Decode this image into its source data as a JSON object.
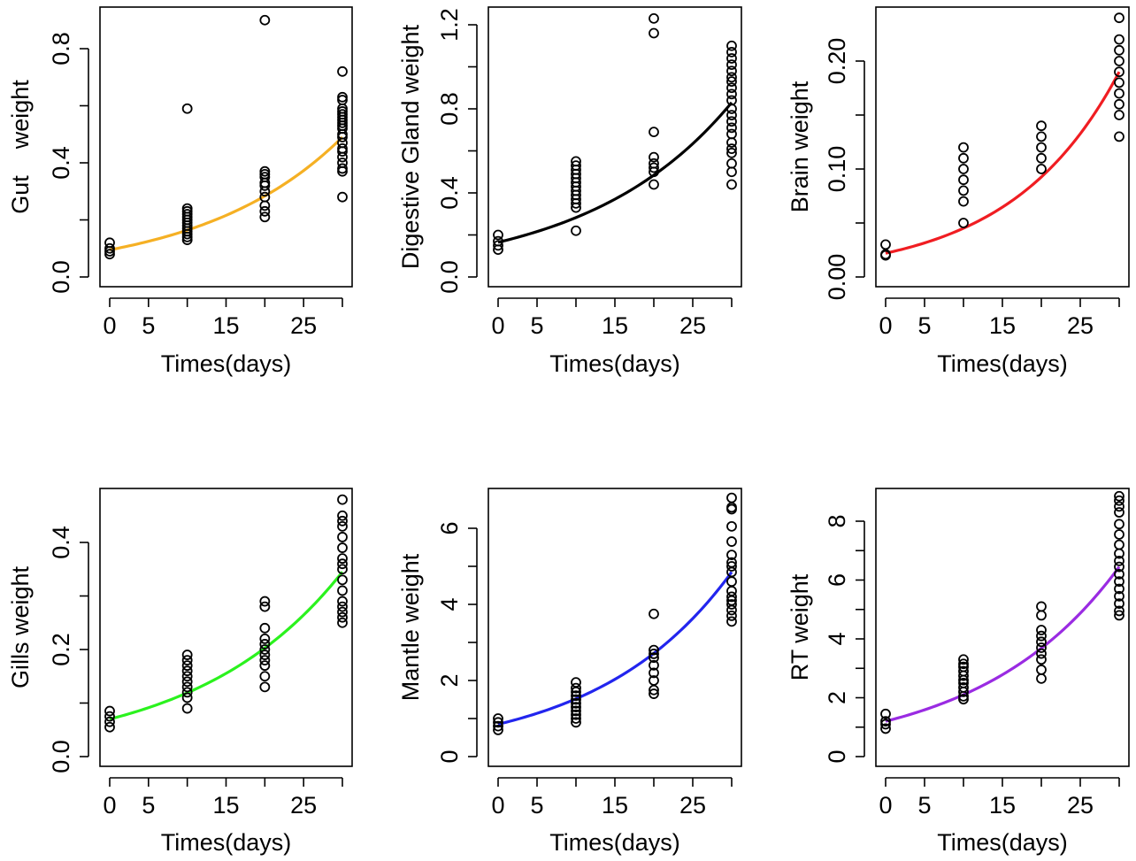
{
  "chart_data": [
    {
      "type": "scatter",
      "xlabel": "Times(days)",
      "ylabel": "Gut    weight",
      "xlim": [
        0,
        30
      ],
      "ylim": [
        0.0,
        0.9
      ],
      "xticks": [
        0,
        5,
        15,
        25
      ],
      "xtick_labels": [
        "0",
        "5",
        "15",
        "25"
      ],
      "yticks": [
        0.0,
        0.4,
        0.8
      ],
      "ytick_labels": [
        "0.0",
        "0.4",
        "0.8"
      ],
      "fit_color": "#F5B024",
      "fit": {
        "x": [
          0,
          30
        ],
        "y_start": 0.095,
        "y_end": 0.49
      },
      "points": [
        {
          "x": 0,
          "y": [
            0.08,
            0.09,
            0.1,
            0.12
          ]
        },
        {
          "x": 10,
          "y": [
            0.13,
            0.14,
            0.15,
            0.16,
            0.17,
            0.18,
            0.19,
            0.2,
            0.21,
            0.22,
            0.23,
            0.24,
            0.59
          ]
        },
        {
          "x": 20,
          "y": [
            0.21,
            0.23,
            0.25,
            0.28,
            0.3,
            0.32,
            0.33,
            0.35,
            0.36,
            0.37,
            0.9
          ]
        },
        {
          "x": 30,
          "y": [
            0.28,
            0.37,
            0.38,
            0.4,
            0.42,
            0.44,
            0.45,
            0.47,
            0.49,
            0.5,
            0.52,
            0.53,
            0.54,
            0.55,
            0.56,
            0.57,
            0.58,
            0.59,
            0.62,
            0.63,
            0.72
          ]
        }
      ]
    },
    {
      "type": "scatter",
      "xlabel": "Times(days)",
      "ylabel": "Digestive Gland weight",
      "xlim": [
        0,
        30
      ],
      "ylim": [
        0.0,
        1.25
      ],
      "xticks": [
        0,
        5,
        15,
        25
      ],
      "xtick_labels": [
        "0",
        "5",
        "15",
        "25"
      ],
      "yticks": [
        0.0,
        0.4,
        0.8,
        1.2
      ],
      "ytick_labels": [
        "0.0",
        "0.4",
        "0.8",
        "1.2"
      ],
      "fit_color": "#000000",
      "fit": {
        "x": [
          0,
          30
        ],
        "y_start": 0.165,
        "y_end": 0.83
      },
      "points": [
        {
          "x": 0,
          "y": [
            0.13,
            0.15,
            0.17,
            0.2
          ]
        },
        {
          "x": 10,
          "y": [
            0.22,
            0.33,
            0.35,
            0.37,
            0.39,
            0.41,
            0.43,
            0.45,
            0.47,
            0.49,
            0.51,
            0.53,
            0.55
          ]
        },
        {
          "x": 20,
          "y": [
            0.44,
            0.5,
            0.52,
            0.54,
            0.57,
            0.69,
            1.16,
            1.23
          ]
        },
        {
          "x": 30,
          "y": [
            0.44,
            0.5,
            0.54,
            0.59,
            0.61,
            0.64,
            0.68,
            0.71,
            0.74,
            0.77,
            0.8,
            0.84,
            0.87,
            0.9,
            0.93,
            0.95,
            0.98,
            1.01,
            1.04,
            1.07,
            1.1
          ]
        }
      ]
    },
    {
      "type": "scatter",
      "xlabel": "Times(days)",
      "ylabel": "Brain weight",
      "xlim": [
        0,
        30
      ],
      "ylim": [
        0.0,
        0.25
      ],
      "xticks": [
        0,
        5,
        15,
        25
      ],
      "xtick_labels": [
        "0",
        "5",
        "15",
        "25"
      ],
      "yticks": [
        0.0,
        0.1,
        0.2
      ],
      "ytick_labels": [
        "0.00",
        "0.10",
        "0.20"
      ],
      "fit_color": "#F01D22",
      "fit": {
        "x": [
          0,
          30
        ],
        "y_start": 0.022,
        "y_end": 0.19
      },
      "points": [
        {
          "x": 0,
          "y": [
            0.02,
            0.021,
            0.03
          ]
        },
        {
          "x": 10,
          "y": [
            0.05,
            0.07,
            0.08,
            0.09,
            0.1,
            0.11,
            0.12
          ]
        },
        {
          "x": 20,
          "y": [
            0.1,
            0.11,
            0.12,
            0.13,
            0.14
          ]
        },
        {
          "x": 30,
          "y": [
            0.13,
            0.15,
            0.16,
            0.17,
            0.18,
            0.19,
            0.2,
            0.21,
            0.22,
            0.24
          ]
        }
      ]
    },
    {
      "type": "scatter",
      "xlabel": "Times(days)",
      "ylabel": "Gills weight",
      "xlim": [
        0,
        30
      ],
      "ylim": [
        0.0,
        0.5
      ],
      "xticks": [
        0,
        5,
        15,
        25
      ],
      "xtick_labels": [
        "0",
        "5",
        "15",
        "25"
      ],
      "yticks": [
        0.0,
        0.2,
        0.4
      ],
      "ytick_labels": [
        "0.0",
        "0.2",
        "0.4"
      ],
      "fit_color": "#2BF21E",
      "fit": {
        "x": [
          0,
          30
        ],
        "y_start": 0.07,
        "y_end": 0.345
      },
      "points": [
        {
          "x": 0,
          "y": [
            0.055,
            0.065,
            0.075,
            0.085
          ]
        },
        {
          "x": 10,
          "y": [
            0.09,
            0.11,
            0.12,
            0.13,
            0.14,
            0.15,
            0.16,
            0.17,
            0.18,
            0.19
          ]
        },
        {
          "x": 20,
          "y": [
            0.13,
            0.15,
            0.17,
            0.18,
            0.19,
            0.2,
            0.21,
            0.22,
            0.24,
            0.28,
            0.29
          ]
        },
        {
          "x": 30,
          "y": [
            0.25,
            0.26,
            0.27,
            0.28,
            0.29,
            0.31,
            0.33,
            0.35,
            0.36,
            0.37,
            0.39,
            0.41,
            0.43,
            0.44,
            0.45,
            0.48
          ]
        }
      ]
    },
    {
      "type": "scatter",
      "xlabel": "Times(days)",
      "ylabel": "Mantle weight",
      "xlim": [
        0,
        30
      ],
      "ylim": [
        0,
        7
      ],
      "xticks": [
        0,
        5,
        15,
        25
      ],
      "xtick_labels": [
        "0",
        "5",
        "15",
        "25"
      ],
      "yticks": [
        0,
        2,
        4,
        6
      ],
      "ytick_labels": [
        "0",
        "2",
        "4",
        "6"
      ],
      "fit_color": "#2225EE",
      "fit": {
        "x": [
          0,
          30
        ],
        "y_start": 0.85,
        "y_end": 4.85
      },
      "points": [
        {
          "x": 0,
          "y": [
            0.7,
            0.8,
            0.9,
            1.0
          ]
        },
        {
          "x": 10,
          "y": [
            0.9,
            1.0,
            1.1,
            1.2,
            1.3,
            1.4,
            1.5,
            1.6,
            1.7,
            1.8,
            1.95
          ]
        },
        {
          "x": 20,
          "y": [
            1.65,
            1.75,
            2.0,
            2.2,
            2.4,
            2.6,
            2.7,
            2.8,
            3.75
          ]
        },
        {
          "x": 30,
          "y": [
            3.55,
            3.7,
            3.85,
            4.0,
            4.1,
            4.2,
            4.35,
            4.6,
            4.85,
            5.0,
            5.1,
            5.3,
            5.65,
            6.05,
            6.5,
            6.55,
            6.8
          ]
        }
      ]
    },
    {
      "type": "scatter",
      "xlabel": "Times(days)",
      "ylabel": "RT weight",
      "xlim": [
        0,
        30
      ],
      "ylim": [
        0,
        9
      ],
      "xticks": [
        0,
        5,
        15,
        25
      ],
      "xtick_labels": [
        "0",
        "5",
        "15",
        "25"
      ],
      "yticks": [
        0,
        2,
        4,
        6,
        8
      ],
      "ytick_labels": [
        "0",
        "2",
        "4",
        "6",
        "8"
      ],
      "fit_color": "#9A2BE2",
      "fit": {
        "x": [
          0,
          30
        ],
        "y_start": 1.2,
        "y_end": 6.45
      },
      "points": [
        {
          "x": 0,
          "y": [
            0.95,
            1.1,
            1.2,
            1.45
          ]
        },
        {
          "x": 10,
          "y": [
            1.95,
            2.05,
            2.2,
            2.35,
            2.5,
            2.6,
            2.75,
            2.9,
            3.05,
            3.15,
            3.3
          ]
        },
        {
          "x": 20,
          "y": [
            2.65,
            2.95,
            3.3,
            3.5,
            3.7,
            3.9,
            4.1,
            4.3,
            4.8,
            5.1
          ]
        },
        {
          "x": 30,
          "y": [
            4.8,
            4.95,
            5.2,
            5.45,
            5.7,
            5.95,
            6.2,
            6.45,
            6.65,
            6.9,
            7.2,
            7.55,
            7.9,
            8.3,
            8.5,
            8.7,
            8.85
          ]
        }
      ]
    }
  ]
}
